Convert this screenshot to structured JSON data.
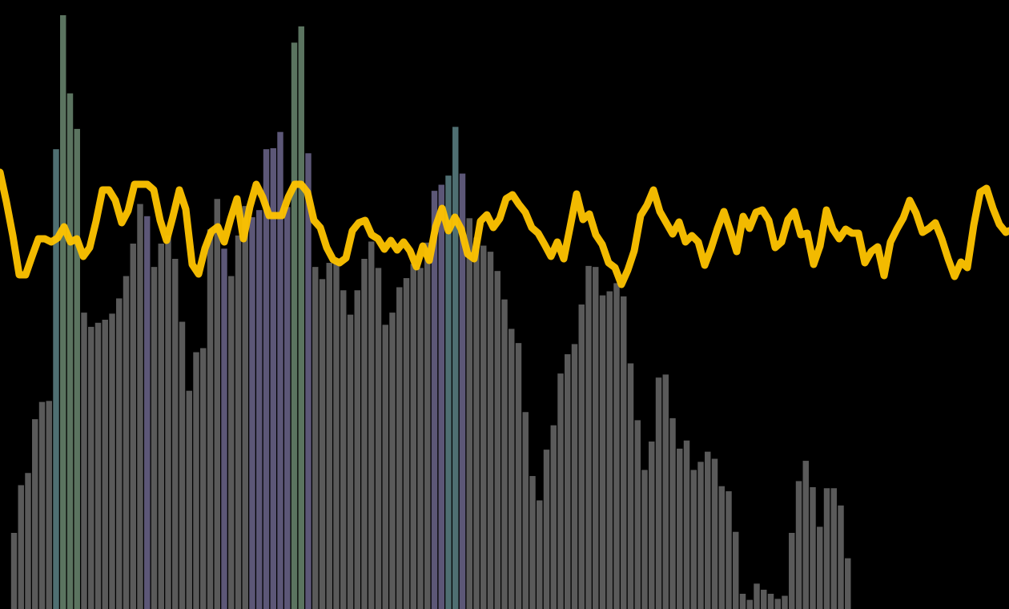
{
  "chart_data": {
    "type": "bar",
    "title": "",
    "xlabel": "",
    "ylabel": "",
    "grid": false,
    "legend": "none",
    "colors": {
      "background": "#000000",
      "bar_default": "#5a5a5a",
      "bar_purple": "#5c5777",
      "bar_green": "#5b7460",
      "bar_teal": "#4f6f72",
      "line": "#ffc400"
    },
    "bars": {
      "x_start": 1,
      "xlim": [
        0,
        144
      ],
      "ylim": [
        0,
        600
      ],
      "values": [
        0,
        75,
        122,
        134,
        187,
        204,
        205,
        453,
        585,
        508,
        473,
        292,
        278,
        282,
        285,
        291,
        306,
        328,
        360,
        399,
        387,
        337,
        360,
        368,
        345,
        283,
        215,
        253,
        257,
        374,
        404,
        355,
        328,
        368,
        397,
        386,
        393,
        453,
        454,
        470,
        396,
        558,
        574,
        449,
        337,
        325,
        341,
        341,
        314,
        290,
        314,
        345,
        362,
        336,
        280,
        292,
        317,
        326,
        340,
        336,
        361,
        412,
        418,
        427,
        475,
        429,
        385,
        366,
        358,
        352,
        333,
        305,
        276,
        262,
        194,
        131,
        107,
        157,
        181,
        232,
        251,
        261,
        300,
        338,
        337,
        309,
        313,
        321,
        308,
        242,
        186,
        137,
        165,
        228,
        231,
        188,
        158,
        166,
        137,
        145,
        155,
        148,
        121,
        116,
        76,
        15,
        9,
        25,
        19,
        15,
        10,
        13,
        75,
        126,
        146,
        120,
        81,
        119,
        119,
        102,
        50,
        0
      ],
      "highlight_colors": {
        "8": "bar_teal",
        "9": "bar_green",
        "10": "bar_green",
        "11": "bar_green",
        "21": "bar_purple",
        "32": "bar_purple",
        "36": "bar_purple",
        "37": "bar_purple",
        "38": "bar_purple",
        "39": "bar_purple",
        "40": "bar_purple",
        "41": "bar_purple",
        "42": "bar_green",
        "43": "bar_green",
        "44": "bar_purple",
        "62": "bar_purple",
        "63": "bar_purple",
        "64": "bar_teal",
        "65": "bar_teal",
        "66": "bar_purple"
      }
    },
    "line": {
      "ylim": [
        0,
        760
      ],
      "x": [
        0,
        8,
        16,
        24,
        32,
        40,
        48,
        56,
        64,
        72,
        80,
        88,
        96,
        104,
        112,
        120,
        128,
        136,
        144,
        152,
        160,
        168,
        176,
        184,
        192,
        200,
        208,
        216,
        224,
        232,
        240,
        248,
        256,
        264,
        272,
        280,
        288,
        296,
        304,
        312,
        320,
        328,
        336,
        344,
        352,
        360,
        368,
        376,
        384,
        392,
        400,
        408,
        416,
        424,
        432,
        440,
        448,
        456,
        464,
        472,
        480,
        488,
        496,
        504,
        512,
        520,
        528,
        536,
        544,
        552,
        560,
        568,
        576,
        584,
        592,
        600,
        608,
        616,
        624,
        632,
        640,
        648,
        656,
        664,
        672,
        680,
        688,
        696,
        704,
        712,
        720,
        728,
        736,
        744,
        752,
        760,
        768,
        776,
        784,
        792,
        800,
        808,
        816,
        824,
        832,
        840,
        848,
        856,
        864,
        872,
        880,
        888,
        896,
        904,
        912,
        920,
        928,
        936,
        944,
        952,
        960,
        968,
        976,
        984,
        992,
        1000,
        1008,
        1016,
        1024,
        1032,
        1040,
        1048,
        1056,
        1064,
        1072,
        1080,
        1088,
        1096,
        1104,
        1112,
        1120,
        1128,
        1136,
        1144,
        1152,
        1160,
        1168,
        1176,
        1184,
        1192,
        1200,
        1208,
        1216,
        1224,
        1232,
        1240,
        1248,
        1256,
        1260
      ],
      "values": [
        545,
        508,
        466,
        417,
        417,
        440,
        462,
        462,
        458,
        463,
        477,
        458,
        462,
        440,
        451,
        484,
        523,
        523,
        510,
        482,
        497,
        530,
        530,
        530,
        523,
        485,
        460,
        490,
        523,
        499,
        430,
        418,
        450,
        471,
        477,
        458,
        487,
        512,
        462,
        502,
        530,
        514,
        491,
        491,
        491,
        514,
        530,
        530,
        520,
        485,
        476,
        451,
        436,
        432,
        438,
        472,
        482,
        485,
        467,
        462,
        449,
        460,
        448,
        458,
        447,
        427,
        453,
        435,
        477,
        500,
        472,
        489,
        474,
        443,
        437,
        484,
        492,
        476,
        487,
        512,
        517,
        505,
        495,
        476,
        469,
        455,
        440,
        458,
        437,
        477,
        518,
        486,
        493,
        467,
        455,
        432,
        426,
        405,
        423,
        447,
        491,
        504,
        523,
        496,
        482,
        468,
        483,
        458,
        466,
        458,
        429,
        450,
        475,
        496,
        472,
        446,
        490,
        475,
        495,
        498,
        485,
        451,
        458,
        486,
        496,
        467,
        469,
        430,
        453,
        498,
        474,
        462,
        474,
        469,
        469,
        432,
        446,
        452,
        416,
        458,
        474,
        488,
        510,
        494,
        470,
        475,
        482,
        462,
        437,
        415,
        433,
        426,
        479,
        520,
        525,
        500,
        480,
        470,
        472
      ]
    }
  }
}
